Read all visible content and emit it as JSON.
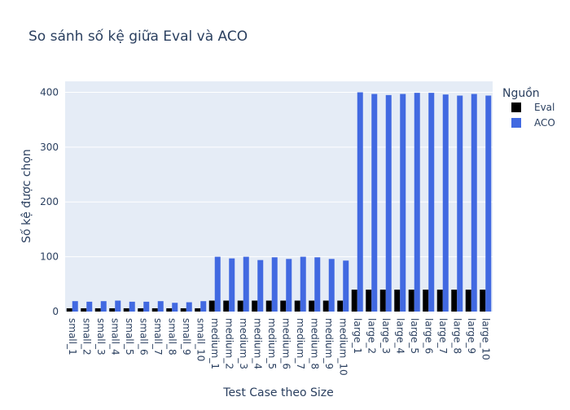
{
  "chart_data": {
    "type": "bar",
    "title": "So sánh số kệ giữa Eval và ACO",
    "xlabel": "Test Case theo Size",
    "ylabel": "Số kệ được chọn",
    "ylim": [
      0,
      420
    ],
    "yticks": [
      0,
      100,
      200,
      300,
      400
    ],
    "grid": true,
    "legend_title": "Nguồn",
    "legend_position": "right",
    "categories": [
      "small_1",
      "small_2",
      "small_3",
      "small_4",
      "small_5",
      "small_6",
      "small_7",
      "small_8",
      "small_9",
      "small_10",
      "medium_1",
      "medium_2",
      "medium_3",
      "medium_4",
      "medium_5",
      "medium_6",
      "medium_7",
      "medium_8",
      "medium_9",
      "medium_10",
      "large_1",
      "large_2",
      "large_3",
      "large_4",
      "large_5",
      "large_6",
      "large_7",
      "large_8",
      "large_9",
      "large_10"
    ],
    "series": [
      {
        "name": "Eval",
        "color": "#000000",
        "values": [
          6,
          6,
          6,
          6,
          6,
          6,
          6,
          6,
          6,
          6,
          20,
          20,
          20,
          20,
          20,
          20,
          20,
          20,
          20,
          20,
          40,
          40,
          40,
          40,
          40,
          40,
          40,
          40,
          40,
          40
        ]
      },
      {
        "name": "ACO",
        "color": "#4169e1",
        "values": [
          19,
          18,
          19,
          20,
          18,
          18,
          19,
          16,
          17,
          19,
          100,
          97,
          100,
          94,
          99,
          96,
          100,
          99,
          96,
          93,
          400,
          397,
          395,
          397,
          399,
          399,
          396,
          394,
          397,
          394
        ]
      }
    ]
  }
}
